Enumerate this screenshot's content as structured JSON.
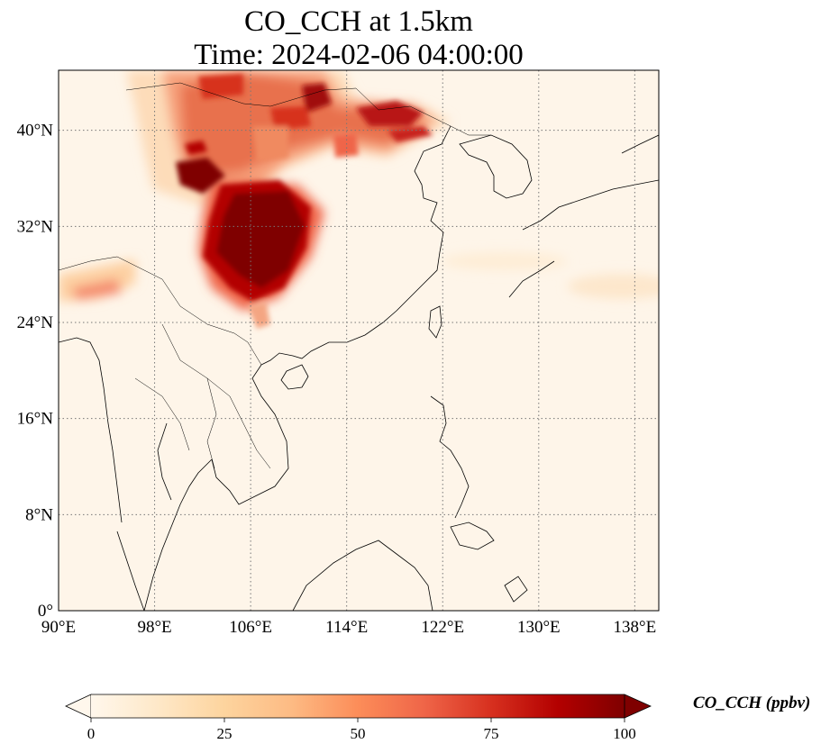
{
  "title_line1": "CO_CCH at 1.5km",
  "title_line2": "Time: 2024-02-06 04:00:00",
  "map": {
    "extent": {
      "lon": [
        90,
        140
      ],
      "lat": [
        0,
        45
      ]
    },
    "gridlines": "dotted",
    "lon_ticks": [
      {
        "value": 90,
        "label": "90°E"
      },
      {
        "value": 98,
        "label": "98°E"
      },
      {
        "value": 106,
        "label": "106°E"
      },
      {
        "value": 114,
        "label": "114°E"
      },
      {
        "value": 122,
        "label": "122°E"
      },
      {
        "value": 130,
        "label": "130°E"
      },
      {
        "value": 138,
        "label": "138°E"
      }
    ],
    "lat_ticks": [
      {
        "value": 0,
        "label": "0°"
      },
      {
        "value": 8,
        "label": "8°N"
      },
      {
        "value": 16,
        "label": "16°N"
      },
      {
        "value": 24,
        "label": "24°N"
      },
      {
        "value": 32,
        "label": "32°N"
      },
      {
        "value": 40,
        "label": "40°N"
      }
    ],
    "colormap": "OrRd",
    "coastline_color": "#000000"
  },
  "colorbar": {
    "label": "CO_CCH (ppbv)",
    "min": 0,
    "max": 100,
    "extend": "both",
    "ticks": [
      "0",
      "25",
      "50",
      "75",
      "100"
    ],
    "colors": [
      "#fff7ec",
      "#fee8c8",
      "#fdd49e",
      "#fdbb84",
      "#fc8d59",
      "#ef6548",
      "#d7301f",
      "#b30000",
      "#7f0000"
    ]
  }
}
